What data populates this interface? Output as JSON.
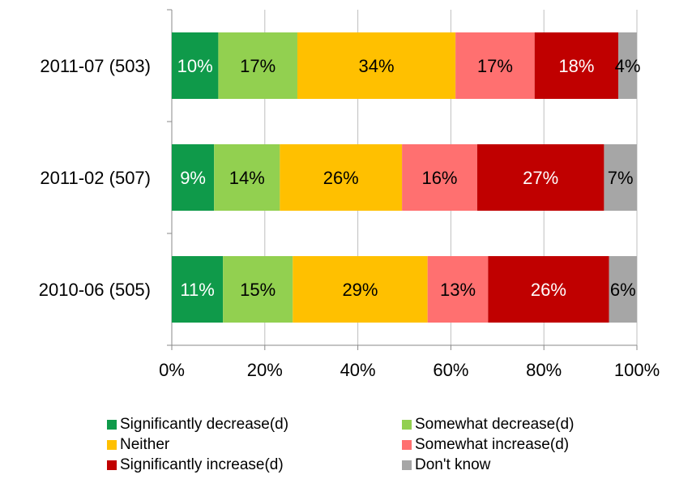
{
  "chart_data": {
    "type": "bar",
    "orientation": "horizontal",
    "stacked": "percent",
    "categories": [
      "2011-07 (503)",
      "2011-02 (507)",
      "2010-06 (505)"
    ],
    "series": [
      {
        "name": "Significantly decrease(d)",
        "color": "#0f9a4a",
        "values": [
          10,
          9,
          11
        ],
        "labels": [
          "10%",
          "9%",
          "11%"
        ],
        "label_color": "#ffffff"
      },
      {
        "name": "Somewhat decrease(d)",
        "color": "#92d050",
        "values": [
          17,
          14,
          15
        ],
        "labels": [
          "17%",
          "14%",
          "15%"
        ],
        "label_color": "#000000"
      },
      {
        "name": "Neither",
        "color": "#ffc000",
        "values": [
          34,
          26,
          29
        ],
        "labels": [
          "34%",
          "26%",
          "29%"
        ],
        "label_color": "#000000"
      },
      {
        "name": "Somewhat increase(d)",
        "color": "#ff7070",
        "values": [
          17,
          16,
          13
        ],
        "labels": [
          "17%",
          "16%",
          "13%"
        ],
        "label_color": "#000000"
      },
      {
        "name": "Significantly increase(d)",
        "color": "#c00000",
        "values": [
          18,
          27,
          26
        ],
        "labels": [
          "18%",
          "27%",
          "26%"
        ],
        "label_color": "#ffffff"
      },
      {
        "name": "Don't know",
        "color": "#a6a6a6",
        "values": [
          4,
          7,
          6
        ],
        "labels": [
          "4%",
          "7%",
          "6%"
        ],
        "label_color": "#000000"
      }
    ],
    "x_ticks": [
      "0%",
      "20%",
      "40%",
      "60%",
      "80%",
      "100%"
    ],
    "xlim": [
      0,
      100
    ],
    "grid": true,
    "legend_position": "bottom"
  }
}
